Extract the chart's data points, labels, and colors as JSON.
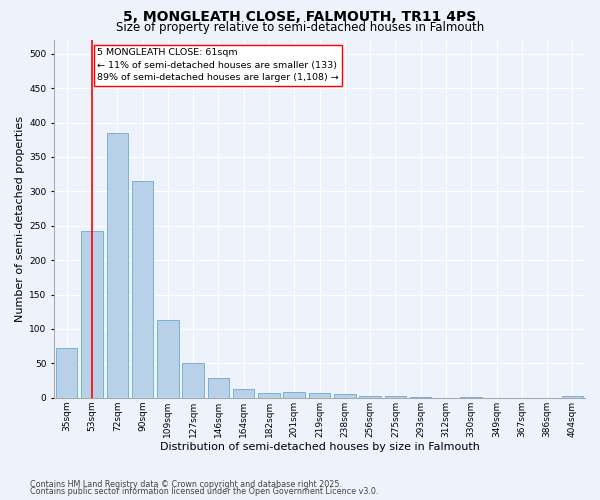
{
  "title": "5, MONGLEATH CLOSE, FALMOUTH, TR11 4PS",
  "subtitle": "Size of property relative to semi-detached houses in Falmouth",
  "xlabel": "Distribution of semi-detached houses by size in Falmouth",
  "ylabel": "Number of semi-detached properties",
  "footnote1": "Contains HM Land Registry data © Crown copyright and database right 2025.",
  "footnote2": "Contains public sector information licensed under the Open Government Licence v3.0.",
  "categories": [
    "35sqm",
    "53sqm",
    "72sqm",
    "90sqm",
    "109sqm",
    "127sqm",
    "146sqm",
    "164sqm",
    "182sqm",
    "201sqm",
    "219sqm",
    "238sqm",
    "256sqm",
    "275sqm",
    "293sqm",
    "312sqm",
    "330sqm",
    "349sqm",
    "367sqm",
    "386sqm",
    "404sqm"
  ],
  "values": [
    73,
    243,
    385,
    315,
    113,
    50,
    29,
    13,
    7,
    8,
    7,
    5,
    2,
    3,
    1,
    0,
    1,
    0,
    0,
    0,
    3
  ],
  "bar_color": "#b8d0e8",
  "bar_edge_color": "#6aaad4",
  "vline_x": 1.0,
  "vline_color": "red",
  "annotation_line1": "5 MONGLEATH CLOSE: 61sqm",
  "annotation_line2": "← 11% of semi-detached houses are smaller (133)",
  "annotation_line3": "89% of semi-detached houses are larger (1,108) →",
  "annotation_box_color": "white",
  "annotation_box_edge_color": "red",
  "ylim": [
    0,
    520
  ],
  "yticks": [
    0,
    50,
    100,
    150,
    200,
    250,
    300,
    350,
    400,
    450,
    500
  ],
  "bg_color": "#eef2fa",
  "plot_bg_color": "#eef2fa",
  "grid_color": "white",
  "title_fontsize": 10,
  "subtitle_fontsize": 8.5,
  "tick_fontsize": 6.5,
  "ylabel_fontsize": 8,
  "xlabel_fontsize": 8,
  "annotation_fontsize": 6.8,
  "footnote_fontsize": 5.8
}
